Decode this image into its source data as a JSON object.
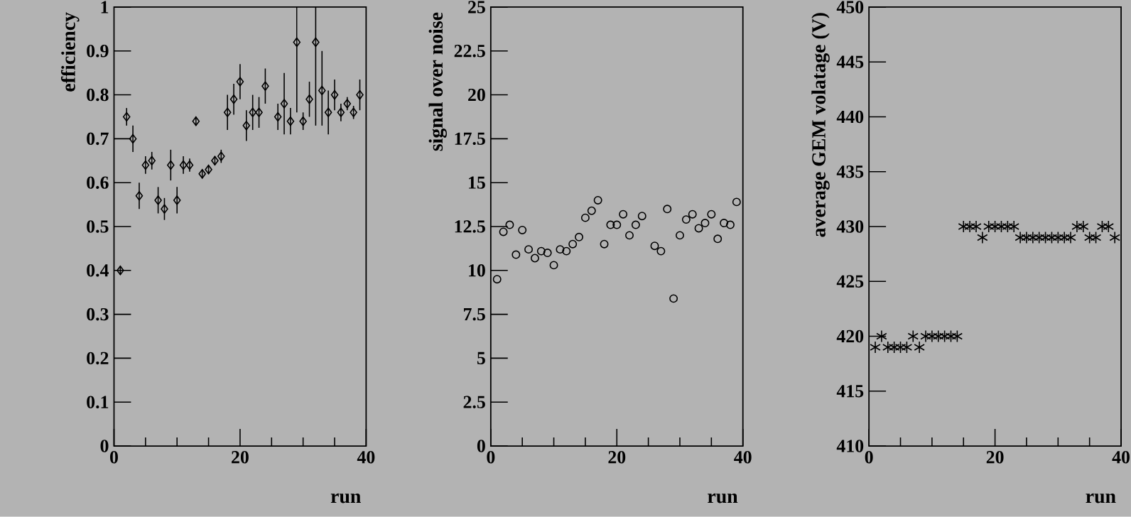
{
  "chart_data": [
    {
      "type": "scatter",
      "ylabel": "efficiency",
      "xlabel": "run",
      "color": "#000000",
      "marker": "diamond",
      "x": [
        1,
        2,
        3,
        4,
        5,
        6,
        7,
        8,
        9,
        10,
        11,
        12,
        13,
        14,
        15,
        16,
        17,
        18,
        19,
        20,
        21,
        22,
        23,
        24,
        26,
        27,
        28,
        29,
        30,
        31,
        32,
        33,
        34,
        35,
        36,
        37,
        38,
        39
      ],
      "values": [
        0.4,
        0.75,
        0.7,
        0.57,
        0.64,
        0.65,
        0.56,
        0.54,
        0.64,
        0.56,
        0.64,
        0.64,
        0.74,
        0.62,
        0.63,
        0.65,
        0.66,
        0.76,
        0.79,
        0.83,
        0.73,
        0.76,
        0.76,
        0.82,
        0.75,
        0.78,
        0.74,
        0.92,
        0.74,
        0.79,
        0.92,
        0.81,
        0.76,
        0.8,
        0.76,
        0.78,
        0.76,
        0.8
      ],
      "errors": [
        0.01,
        0.02,
        0.03,
        0.03,
        0.02,
        0.02,
        0.03,
        0.025,
        0.035,
        0.03,
        0.02,
        0.015,
        0.01,
        0.01,
        0.01,
        0.01,
        0.015,
        0.04,
        0.035,
        0.04,
        0.035,
        0.04,
        0.035,
        0.04,
        0.03,
        0.07,
        0.03,
        [
          0.76,
          1.0
        ],
        0.02,
        0.04,
        [
          0.73,
          1.0
        ],
        [
          0.73,
          0.9
        ],
        0.05,
        0.035,
        0.02,
        0.015,
        0.015,
        0.035
      ],
      "xlim": [
        0,
        40
      ],
      "xticks": [
        0,
        {
          "value": 5,
          "label": null
        },
        {
          "value": 10,
          "label": null
        },
        {
          "value": 15,
          "label": null
        },
        20,
        {
          "value": 25,
          "label": null
        },
        {
          "value": 30,
          "label": null
        },
        {
          "value": 35,
          "label": null
        },
        40
      ],
      "ylim": [
        0,
        1
      ],
      "yticks": [
        0,
        0.1,
        0.2,
        0.3,
        0.4,
        0.5,
        0.6,
        0.7,
        0.8,
        0.9,
        1
      ]
    },
    {
      "type": "scatter",
      "ylabel": "signal over noise",
      "xlabel": "run",
      "color": "#000000",
      "marker": "circle",
      "x": [
        1,
        2,
        3,
        4,
        5,
        6,
        7,
        8,
        9,
        10,
        11,
        12,
        13,
        14,
        15,
        16,
        17,
        18,
        19,
        20,
        21,
        22,
        23,
        24,
        26,
        27,
        28,
        29,
        30,
        31,
        32,
        33,
        34,
        35,
        36,
        37,
        38,
        39
      ],
      "values": [
        9.5,
        12.2,
        12.6,
        10.9,
        12.3,
        11.2,
        10.7,
        11.1,
        11.0,
        10.3,
        11.2,
        11.1,
        11.5,
        11.9,
        13.0,
        13.4,
        14.0,
        11.5,
        12.6,
        12.6,
        13.2,
        12.0,
        12.6,
        13.1,
        11.4,
        11.1,
        13.5,
        8.4,
        12.0,
        12.9,
        13.2,
        12.4,
        12.7,
        13.2,
        11.8,
        12.7,
        12.6,
        13.9
      ],
      "xlim": [
        0,
        40
      ],
      "xticks": [
        0,
        {
          "value": 5,
          "label": null
        },
        {
          "value": 10,
          "label": null
        },
        {
          "value": 15,
          "label": null
        },
        20,
        {
          "value": 25,
          "label": null
        },
        {
          "value": 30,
          "label": null
        },
        {
          "value": 35,
          "label": null
        },
        40
      ],
      "ylim": [
        0,
        25
      ],
      "yticks": [
        0,
        2.5,
        5,
        7.5,
        10,
        12.5,
        15,
        17.5,
        20,
        22.5,
        25
      ]
    },
    {
      "type": "scatter",
      "ylabel": "average GEM volatage (V)",
      "xlabel": "run",
      "color": "#000000",
      "marker": "cross",
      "x": [
        1,
        2,
        3,
        4,
        5,
        6,
        7,
        8,
        9,
        10,
        11,
        12,
        13,
        14,
        15,
        16,
        17,
        18,
        19,
        20,
        21,
        22,
        23,
        24,
        25,
        26,
        27,
        28,
        29,
        30,
        31,
        32,
        33,
        34,
        35,
        36,
        37,
        38,
        39
      ],
      "values": [
        419,
        420,
        419,
        419,
        419,
        419,
        420,
        419,
        420,
        420,
        420,
        420,
        420,
        420,
        430,
        430,
        430,
        429,
        430,
        430,
        430,
        430,
        430,
        429,
        429,
        429,
        429,
        429,
        429,
        429,
        429,
        429,
        430,
        430,
        429,
        429,
        430,
        430,
        429
      ],
      "xlim": [
        0,
        40
      ],
      "xticks": [
        0,
        {
          "value": 5,
          "label": null
        },
        {
          "value": 10,
          "label": null
        },
        {
          "value": 15,
          "label": null
        },
        20,
        {
          "value": 25,
          "label": null
        },
        {
          "value": 30,
          "label": null
        },
        {
          "value": 35,
          "label": null
        },
        40
      ],
      "ylim": [
        410,
        450
      ],
      "yticks": [
        410,
        415,
        420,
        425,
        430,
        435,
        440,
        445,
        450
      ]
    }
  ]
}
